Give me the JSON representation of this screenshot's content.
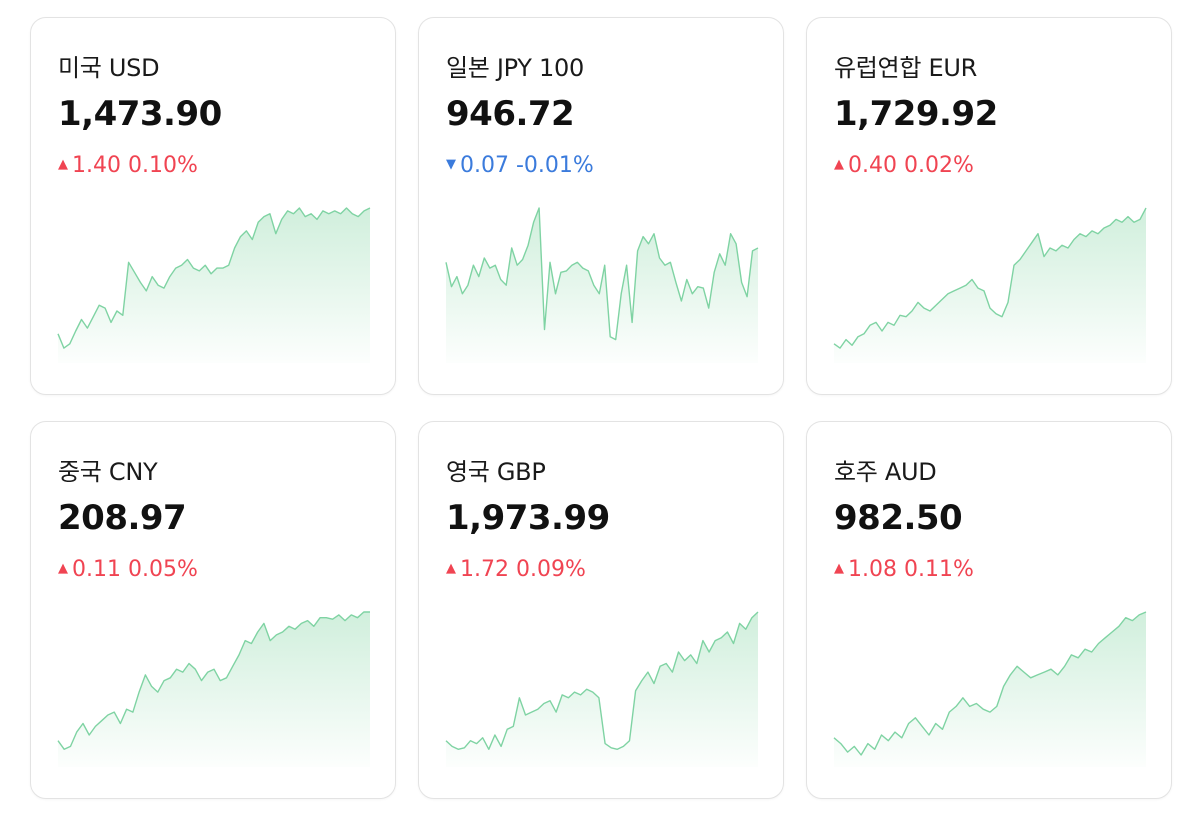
{
  "colors": {
    "up": "#f04452",
    "down": "#3b7bdc",
    "line": "#7fd3a3",
    "fill": "#c8ecd6"
  },
  "cards": [
    {
      "name": "미국 USD",
      "price": "1,473.90",
      "direction": "up",
      "arrow": "▲",
      "delta": "1.40",
      "pct": "0.10%",
      "trend": [
        0.12,
        0.02,
        0.05,
        0.14,
        0.22,
        0.16,
        0.24,
        0.32,
        0.3,
        0.2,
        0.28,
        0.25,
        0.62,
        0.55,
        0.48,
        0.42,
        0.52,
        0.46,
        0.44,
        0.52,
        0.58,
        0.6,
        0.64,
        0.58,
        0.56,
        0.6,
        0.54,
        0.58,
        0.58,
        0.6,
        0.72,
        0.8,
        0.84,
        0.78,
        0.9,
        0.94,
        0.96,
        0.82,
        0.92,
        0.98,
        0.96,
        1.0,
        0.94,
        0.96,
        0.92,
        0.98,
        0.96,
        0.98,
        0.96,
        1.0,
        0.96,
        0.94,
        0.98,
        1.0
      ]
    },
    {
      "name": "일본 JPY 100",
      "price": "946.72",
      "direction": "down",
      "arrow": "▼",
      "delta": "0.07",
      "pct": "-0.01%",
      "trend": [
        0.62,
        0.45,
        0.52,
        0.4,
        0.46,
        0.6,
        0.52,
        0.65,
        0.58,
        0.6,
        0.5,
        0.46,
        0.72,
        0.6,
        0.64,
        0.74,
        0.9,
        1.0,
        0.15,
        0.62,
        0.4,
        0.55,
        0.56,
        0.6,
        0.62,
        0.58,
        0.56,
        0.46,
        0.4,
        0.6,
        0.1,
        0.08,
        0.4,
        0.6,
        0.2,
        0.7,
        0.8,
        0.75,
        0.82,
        0.65,
        0.6,
        0.62,
        0.48,
        0.35,
        0.5,
        0.4,
        0.45,
        0.44,
        0.3,
        0.55,
        0.68,
        0.6,
        0.82,
        0.75,
        0.48,
        0.38,
        0.7,
        0.72
      ]
    },
    {
      "name": "유럽연합 EUR",
      "price": "1,729.92",
      "direction": "up",
      "arrow": "▲",
      "delta": "0.40",
      "pct": "0.02%",
      "trend": [
        0.05,
        0.02,
        0.08,
        0.04,
        0.1,
        0.12,
        0.18,
        0.2,
        0.14,
        0.2,
        0.18,
        0.25,
        0.24,
        0.28,
        0.34,
        0.3,
        0.28,
        0.32,
        0.36,
        0.4,
        0.42,
        0.44,
        0.46,
        0.5,
        0.44,
        0.42,
        0.3,
        0.26,
        0.24,
        0.34,
        0.6,
        0.64,
        0.7,
        0.76,
        0.82,
        0.66,
        0.72,
        0.7,
        0.74,
        0.72,
        0.78,
        0.82,
        0.8,
        0.84,
        0.82,
        0.86,
        0.88,
        0.92,
        0.9,
        0.94,
        0.9,
        0.92,
        1.0
      ]
    },
    {
      "name": "중국 CNY",
      "price": "208.97",
      "direction": "up",
      "arrow": "▲",
      "delta": "0.11",
      "pct": "0.05%",
      "trend": [
        0.1,
        0.04,
        0.06,
        0.16,
        0.22,
        0.14,
        0.2,
        0.24,
        0.28,
        0.3,
        0.22,
        0.32,
        0.3,
        0.44,
        0.56,
        0.48,
        0.44,
        0.52,
        0.54,
        0.6,
        0.58,
        0.64,
        0.6,
        0.52,
        0.58,
        0.6,
        0.52,
        0.54,
        0.62,
        0.7,
        0.8,
        0.78,
        0.86,
        0.92,
        0.8,
        0.84,
        0.86,
        0.9,
        0.88,
        0.92,
        0.94,
        0.9,
        0.96,
        0.96,
        0.95,
        0.98,
        0.94,
        0.98,
        0.96,
        1.0,
        1.0
      ]
    },
    {
      "name": "영국 GBP",
      "price": "1,973.99",
      "direction": "up",
      "arrow": "▲",
      "delta": "1.72",
      "pct": "0.09%",
      "trend": [
        0.1,
        0.06,
        0.04,
        0.05,
        0.1,
        0.08,
        0.12,
        0.04,
        0.14,
        0.06,
        0.18,
        0.2,
        0.4,
        0.28,
        0.3,
        0.32,
        0.36,
        0.38,
        0.3,
        0.42,
        0.4,
        0.44,
        0.42,
        0.46,
        0.44,
        0.4,
        0.08,
        0.05,
        0.04,
        0.06,
        0.1,
        0.45,
        0.52,
        0.58,
        0.5,
        0.62,
        0.64,
        0.58,
        0.72,
        0.66,
        0.7,
        0.64,
        0.8,
        0.72,
        0.8,
        0.82,
        0.86,
        0.78,
        0.92,
        0.88,
        0.96,
        1.0
      ]
    },
    {
      "name": "호주 AUD",
      "price": "982.50",
      "direction": "up",
      "arrow": "▲",
      "delta": "1.08",
      "pct": "0.11%",
      "trend": [
        0.12,
        0.08,
        0.02,
        0.06,
        0.0,
        0.08,
        0.04,
        0.14,
        0.1,
        0.16,
        0.12,
        0.22,
        0.26,
        0.2,
        0.14,
        0.22,
        0.18,
        0.3,
        0.34,
        0.4,
        0.34,
        0.36,
        0.32,
        0.3,
        0.34,
        0.48,
        0.56,
        0.62,
        0.58,
        0.54,
        0.56,
        0.58,
        0.6,
        0.56,
        0.62,
        0.7,
        0.68,
        0.74,
        0.72,
        0.78,
        0.82,
        0.86,
        0.9,
        0.96,
        0.94,
        0.98,
        1.0
      ]
    }
  ]
}
